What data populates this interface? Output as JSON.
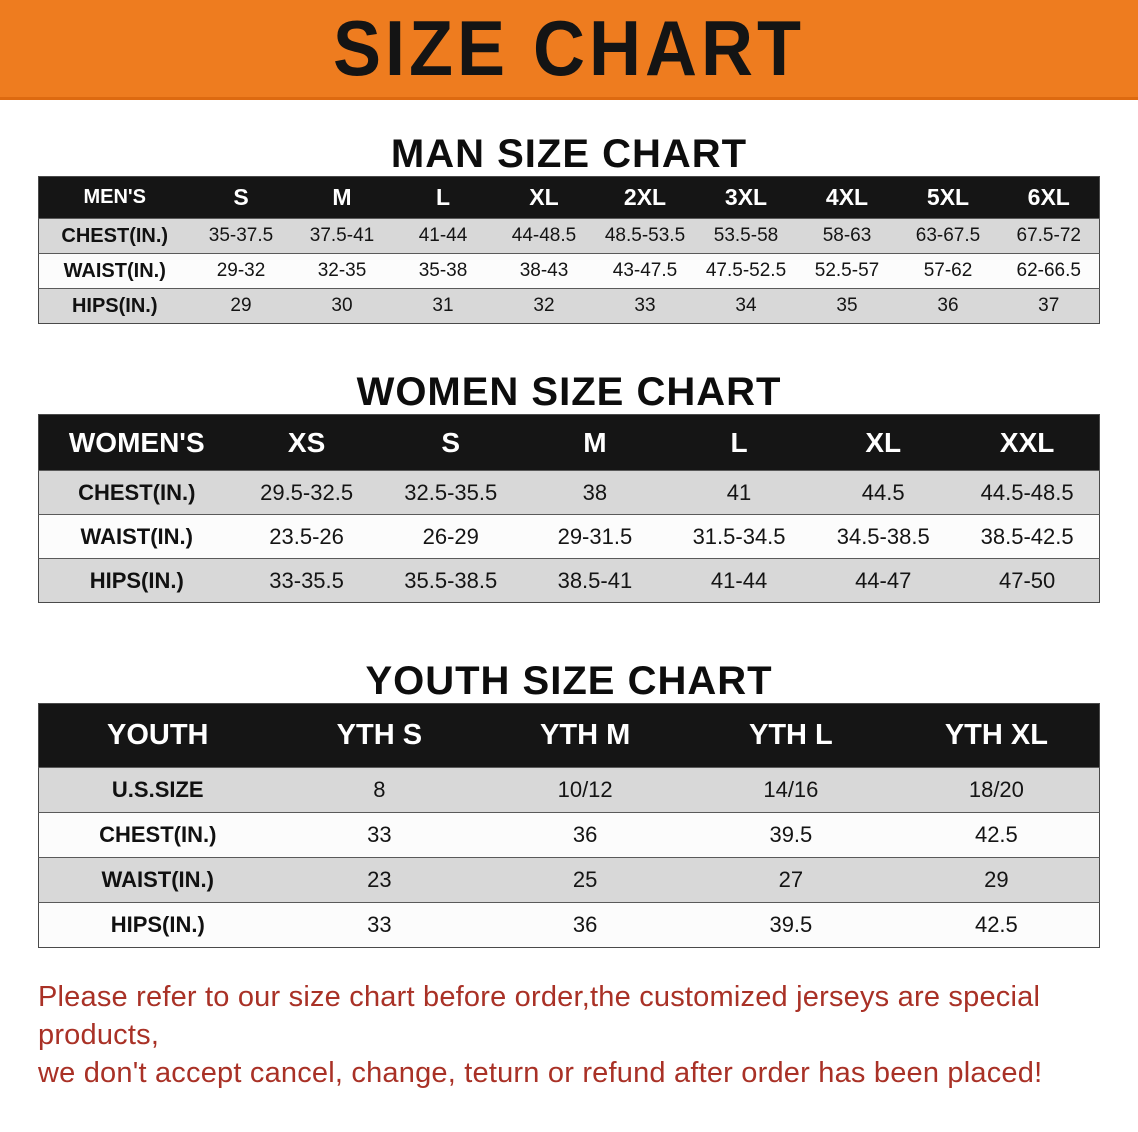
{
  "banner": {
    "title": "SIZE CHART"
  },
  "colors": {
    "banner_bg": "#ee7c1f",
    "table_header_bg": "#151515",
    "row_gray": "#d8d8d8",
    "note_text": "#a93126"
  },
  "men": {
    "heading": "MAN SIZE CHART",
    "header": [
      "MEN'S",
      "S",
      "M",
      "L",
      "XL",
      "2XL",
      "3XL",
      "4XL",
      "5XL",
      "6XL"
    ],
    "rows": [
      {
        "label": "CHEST(IN.)",
        "values": [
          "35-37.5",
          "37.5-41",
          "41-44",
          "44-48.5",
          "48.5-53.5",
          "53.5-58",
          "58-63",
          "63-67.5",
          "67.5-72"
        ]
      },
      {
        "label": "WAIST(IN.)",
        "values": [
          "29-32",
          "32-35",
          "35-38",
          "38-43",
          "43-47.5",
          "47.5-52.5",
          "52.5-57",
          "57-62",
          "62-66.5"
        ]
      },
      {
        "label": "HIPS(IN.)",
        "values": [
          "29",
          "30",
          "31",
          "32",
          "33",
          "34",
          "35",
          "36",
          "37"
        ]
      }
    ]
  },
  "women": {
    "heading": "WOMEN SIZE CHART",
    "header": [
      "WOMEN'S",
      "XS",
      "S",
      "M",
      "L",
      "XL",
      "XXL"
    ],
    "rows": [
      {
        "label": "CHEST(IN.)",
        "values": [
          "29.5-32.5",
          "32.5-35.5",
          "38",
          "41",
          "44.5",
          "44.5-48.5"
        ]
      },
      {
        "label": "WAIST(IN.)",
        "values": [
          "23.5-26",
          "26-29",
          "29-31.5",
          "31.5-34.5",
          "34.5-38.5",
          "38.5-42.5"
        ]
      },
      {
        "label": "HIPS(IN.)",
        "values": [
          "33-35.5",
          "35.5-38.5",
          "38.5-41",
          "41-44",
          "44-47",
          "47-50"
        ]
      }
    ]
  },
  "youth": {
    "heading": "YOUTH SIZE CHART",
    "header": [
      "YOUTH",
      "YTH S",
      "YTH M",
      "YTH L",
      "YTH XL"
    ],
    "rows": [
      {
        "label": "U.S.SIZE",
        "values": [
          "8",
          "10/12",
          "14/16",
          "18/20"
        ]
      },
      {
        "label": "CHEST(IN.)",
        "values": [
          "33",
          "36",
          "39.5",
          "42.5"
        ]
      },
      {
        "label": "WAIST(IN.)",
        "values": [
          "23",
          "25",
          "27",
          "29"
        ]
      },
      {
        "label": "HIPS(IN.)",
        "values": [
          "33",
          "36",
          "39.5",
          "42.5"
        ]
      }
    ]
  },
  "note": {
    "line1": "Please refer to our size chart before order,the customized jerseys are special products,",
    "line2": "we don't accept cancel, change, teturn or refund after order has been placed!"
  }
}
